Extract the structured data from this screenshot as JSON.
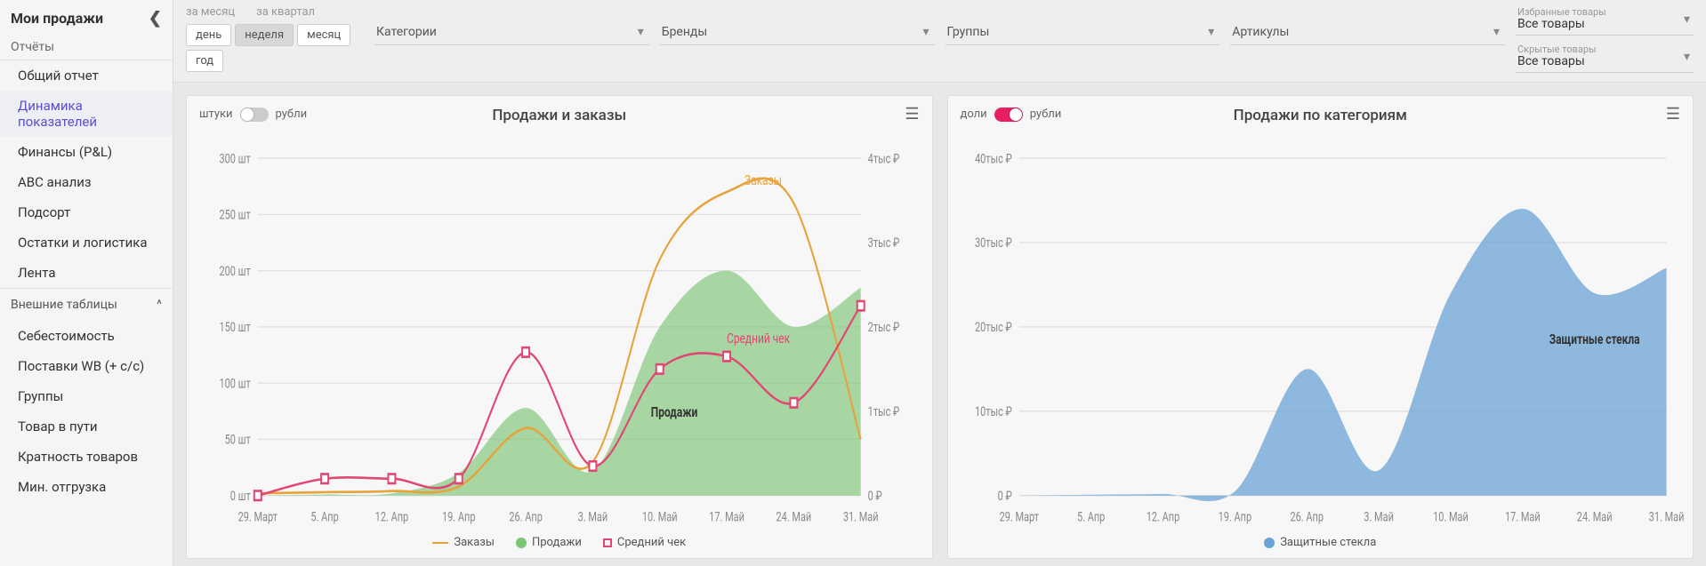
{
  "sidebar": {
    "title": "Мои продажи",
    "section_reports": "Отчёты",
    "items": [
      {
        "label": "Общий отчет"
      },
      {
        "label": "Динамика показателей",
        "active": true
      },
      {
        "label": "Финансы (P&L)"
      },
      {
        "label": "ABC анализ"
      },
      {
        "label": "Подсорт"
      },
      {
        "label": "Остатки и логистика"
      },
      {
        "label": "Лента"
      }
    ],
    "section_external": "Внешние таблицы",
    "ext_items": [
      {
        "label": "Себестоимость"
      },
      {
        "label": "Поставки WB (+ c/c)"
      },
      {
        "label": "Группы"
      },
      {
        "label": "Товар в пути"
      },
      {
        "label": "Кратность товаров"
      },
      {
        "label": "Мин. отгрузка"
      }
    ]
  },
  "filters": {
    "period_tabs": [
      "за месяц",
      "за квартал"
    ],
    "granularity": [
      "день",
      "неделя",
      "месяц",
      "год"
    ],
    "granularity_active": "неделя",
    "dropdowns": [
      "Категории",
      "Бренды",
      "Группы",
      "Артикулы"
    ],
    "favorites": {
      "label": "Избранные товары",
      "value": "Все товары"
    },
    "hidden": {
      "label": "Скрытые товары",
      "value": "Все товары"
    }
  },
  "chart1": {
    "type": "line+area",
    "title": "Продажи и заказы",
    "toggle_left": "штуки",
    "toggle_right": "рубли",
    "toggle_on": false,
    "x_labels": [
      "29. Март",
      "5. Апр",
      "12. Апр",
      "19. Апр",
      "26. Апр",
      "3. Май",
      "10. Май",
      "17. Май",
      "24. Май",
      "31. Май"
    ],
    "y_left_ticks": [
      0,
      50,
      100,
      150,
      200,
      250,
      300
    ],
    "y_left_suffix": " шт",
    "y_right_ticks": [
      0,
      1,
      2,
      3,
      4
    ],
    "y_right_suffix": "тыс ₽",
    "y_right_zero": "0 ₽",
    "series": {
      "orders": {
        "label": "Заказы",
        "color": "#e8a23a",
        "annot": "Заказы",
        "values": [
          2,
          3,
          4,
          8,
          60,
          30,
          210,
          270,
          260,
          50
        ]
      },
      "sales": {
        "label": "Продажи",
        "color": "#7cc576",
        "annot": "Продажи",
        "values": [
          0,
          1,
          2,
          20,
          78,
          22,
          150,
          200,
          150,
          185
        ]
      },
      "avg": {
        "label": "Средний чек",
        "color": "#e04772",
        "annot": "Средний чек",
        "values_r": [
          0,
          0.2,
          0.2,
          0.2,
          1.7,
          0.35,
          1.5,
          1.65,
          1.1,
          2.25
        ]
      }
    },
    "ylim_left": [
      0,
      300
    ],
    "ylim_right": [
      0,
      4
    ],
    "background": "#f7f7f7",
    "grid_color": "#e0e0e0"
  },
  "chart2": {
    "type": "area",
    "title": "Продажи по категориям",
    "toggle_left": "доли",
    "toggle_right": "рубли",
    "toggle_on": true,
    "x_labels": [
      "29. Март",
      "5. Апр",
      "12. Апр",
      "19. Апр",
      "26. Апр",
      "3. Май",
      "10. Май",
      "17. Май",
      "24. Май",
      "31. Май"
    ],
    "y_ticks": [
      0,
      10,
      20,
      30,
      40
    ],
    "y_suffix": "тыс ₽",
    "y_zero": "0 ₽",
    "series": {
      "glass": {
        "label": "Защитные стекла",
        "color": "#6ba3d6",
        "annot": "Защитные стекла",
        "values": [
          0,
          0.1,
          0.2,
          0.5,
          15,
          3,
          24,
          34,
          24,
          27
        ]
      }
    },
    "ylim": [
      0,
      40
    ],
    "background": "#f7f7f7",
    "grid_color": "#e0e0e0"
  }
}
